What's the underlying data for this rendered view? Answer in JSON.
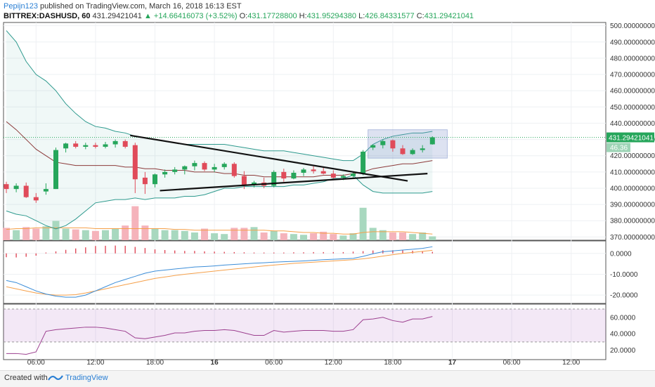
{
  "header": {
    "author": "Pepijn123",
    "published_text": "published on TradingView.com, March 16, 2018 16:13 EST",
    "symbol": "BITTREX:DASHUSD, 60",
    "last": "431.29421041",
    "change": "▲ +14.66416073 (+3.52%)",
    "open_label": "O:",
    "open": "431.17728800",
    "high_label": "H:",
    "high": "431.95294380",
    "low_label": "L:",
    "low": "426.84331577",
    "close_label": "C:",
    "close": "431.29421041"
  },
  "footer": {
    "created_with": "Created with",
    "brand": "TradingView"
  },
  "colors": {
    "up": "#26a65b",
    "down": "#e04b5a",
    "upVol": "#a8d8bf",
    "downVol": "#f5b3bb",
    "bb": "#2e9a8e",
    "ma": "#8c3a3a",
    "vma": "#f5a04a",
    "rsi": "#9c3f8f"
  },
  "chart_data": [
    {
      "type": "candlestick",
      "panel": "price",
      "y_ticks": [
        "500.00000000",
        "490.00000000",
        "480.00000000",
        "470.00000000",
        "460.00000000",
        "450.00000000",
        "440.00000000",
        "430.00000000",
        "420.00000000",
        "410.00000000",
        "400.00000000",
        "390.00000000",
        "380.00000000",
        "370.00000000"
      ],
      "ylim": [
        368,
        502
      ],
      "x_ticks": [
        "06:00",
        "12:00",
        "18:00",
        "16",
        "06:00",
        "12:00",
        "18:00",
        "17",
        "06:00",
        "12:00"
      ],
      "last_price_label": "431.29421041",
      "volume_label": "46.36",
      "candles": [
        {
          "o": 402.5,
          "h": 404,
          "l": 397,
          "c": 399.5,
          "v": 1.6
        },
        {
          "o": 399.5,
          "h": 403,
          "l": 397.5,
          "c": 401.5,
          "v": 1.3
        },
        {
          "o": 401.5,
          "h": 403.5,
          "l": 394,
          "c": 394.5,
          "v": 1.7
        },
        {
          "o": 394.5,
          "h": 397,
          "l": 391,
          "c": 392.5,
          "v": 1.5
        },
        {
          "o": 398,
          "h": 403,
          "l": 396,
          "c": 399.5,
          "v": 1.8
        },
        {
          "o": 399.5,
          "h": 425,
          "l": 399.5,
          "c": 423.5,
          "v": 2.5
        },
        {
          "o": 424.5,
          "h": 428,
          "l": 422,
          "c": 427.5,
          "v": 1.5
        },
        {
          "o": 427.5,
          "h": 429,
          "l": 424.5,
          "c": 425.5,
          "v": 1.4
        },
        {
          "o": 425.5,
          "h": 428,
          "l": 424,
          "c": 426.5,
          "v": 1.3
        },
        {
          "o": 426.5,
          "h": 428,
          "l": 424.5,
          "c": 425.5,
          "v": 1.2
        },
        {
          "o": 425.5,
          "h": 428.5,
          "l": 424.5,
          "c": 427.0,
          "v": 1.3
        },
        {
          "o": 427.0,
          "h": 430,
          "l": 425,
          "c": 429.0,
          "v": 1.5
        },
        {
          "o": 429.0,
          "h": 430,
          "l": 424.5,
          "c": 425.5,
          "v": 1.9
        },
        {
          "o": 426.5,
          "h": 428,
          "l": 397,
          "c": 405.5,
          "v": 4.4
        },
        {
          "o": 406.5,
          "h": 410,
          "l": 396.5,
          "c": 402.5,
          "v": 1.9
        },
        {
          "o": 402.5,
          "h": 409,
          "l": 400.5,
          "c": 408.5,
          "v": 1.5
        },
        {
          "o": 408.5,
          "h": 411.5,
          "l": 406.5,
          "c": 410.0,
          "v": 1.3
        },
        {
          "o": 410.0,
          "h": 413,
          "l": 408.5,
          "c": 411.5,
          "v": 1.3
        },
        {
          "o": 411.5,
          "h": 414,
          "l": 408.5,
          "c": 413.5,
          "v": 1.2
        },
        {
          "o": 413.5,
          "h": 417,
          "l": 411,
          "c": 415.5,
          "v": 1.0
        },
        {
          "o": 415.5,
          "h": 416.5,
          "l": 410.5,
          "c": 411.5,
          "v": 1.5
        },
        {
          "o": 411.5,
          "h": 415,
          "l": 410,
          "c": 413.0,
          "v": 0.9
        },
        {
          "o": 413.0,
          "h": 416,
          "l": 411.5,
          "c": 415.0,
          "v": 0.8
        },
        {
          "o": 415.0,
          "h": 416,
          "l": 406.5,
          "c": 407.5,
          "v": 1.6
        },
        {
          "o": 407.5,
          "h": 410.5,
          "l": 399.5,
          "c": 402.0,
          "v": 1.6
        },
        {
          "o": 402.0,
          "h": 404.5,
          "l": 400.5,
          "c": 403.5,
          "v": 1.7
        },
        {
          "o": 403.5,
          "h": 406.5,
          "l": 400,
          "c": 401.5,
          "v": 1.0
        },
        {
          "o": 401.5,
          "h": 411,
          "l": 400.5,
          "c": 410.0,
          "v": 1.2
        },
        {
          "o": 410.0,
          "h": 412,
          "l": 404,
          "c": 406.0,
          "v": 0.9
        },
        {
          "o": 406.0,
          "h": 411,
          "l": 405.5,
          "c": 409.5,
          "v": 0.8
        },
        {
          "o": 409.5,
          "h": 412.5,
          "l": 407.5,
          "c": 411.5,
          "v": 0.7
        },
        {
          "o": 411.5,
          "h": 413.5,
          "l": 409,
          "c": 410.5,
          "v": 0.9
        },
        {
          "o": 410.5,
          "h": 412.5,
          "l": 408.5,
          "c": 409.0,
          "v": 1.1
        },
        {
          "o": 409.0,
          "h": 411,
          "l": 405.5,
          "c": 406.5,
          "v": 0.8
        },
        {
          "o": 406.5,
          "h": 408.5,
          "l": 405,
          "c": 407.5,
          "v": 0.6
        },
        {
          "o": 407.5,
          "h": 410,
          "l": 406.5,
          "c": 409.0,
          "v": 0.9
        },
        {
          "o": 409.0,
          "h": 423.5,
          "l": 408,
          "c": 422.5,
          "v": 4.2
        },
        {
          "o": 425.0,
          "h": 427,
          "l": 423.5,
          "c": 426.5,
          "v": 1.6
        },
        {
          "o": 426.5,
          "h": 430,
          "l": 424.5,
          "c": 429.0,
          "v": 1.3
        },
        {
          "o": 429.5,
          "h": 430,
          "l": 422.5,
          "c": 424.5,
          "v": 1.0
        },
        {
          "o": 424.5,
          "h": 426.5,
          "l": 420.5,
          "c": 421.0,
          "v": 1.0
        },
        {
          "o": 421.0,
          "h": 424.5,
          "l": 420.5,
          "c": 423.5,
          "v": 0.8
        },
        {
          "o": 423.5,
          "h": 426.5,
          "l": 422,
          "c": 424.5,
          "v": 1.0
        },
        {
          "o": 427.0,
          "h": 431.95,
          "l": 426.84,
          "c": 431.29,
          "v": 0.5
        }
      ],
      "bb_upper": [
        497,
        490,
        478,
        470,
        466,
        460,
        452,
        446,
        441,
        438,
        437,
        435,
        434,
        432,
        431,
        430,
        429,
        428,
        427,
        427,
        427,
        427,
        427,
        426,
        425,
        424,
        423,
        423,
        423,
        422,
        421,
        420,
        419,
        418,
        417,
        417,
        421,
        427,
        430,
        432,
        433,
        434,
        434,
        435
      ],
      "bb_mid": [
        441,
        436,
        430,
        424,
        420,
        416,
        415,
        414,
        414,
        414,
        414,
        414,
        413,
        413,
        412,
        412,
        411,
        411,
        411,
        410,
        410,
        410,
        409,
        409,
        408,
        408,
        407,
        407,
        407,
        407,
        407,
        407,
        408,
        408,
        408,
        409,
        410,
        412,
        413,
        414,
        415,
        415,
        416,
        417
      ],
      "bb_lower": [
        386,
        384,
        383,
        380,
        377,
        375,
        377,
        381,
        386,
        391,
        392,
        393,
        393,
        394,
        393,
        394,
        394,
        394,
        395,
        395,
        396,
        398,
        400,
        400,
        401,
        401,
        401,
        401,
        401,
        402,
        402,
        403,
        404,
        406,
        406,
        408,
        402,
        398,
        397,
        397,
        397,
        397,
        397,
        398
      ],
      "volume_ma": [
        1.4,
        1.5,
        1.5,
        1.6,
        1.6,
        1.6,
        1.6,
        1.6,
        1.6,
        1.5,
        1.5,
        1.5,
        1.5,
        1.5,
        1.5,
        1.5,
        1.5,
        1.4,
        1.4,
        1.3,
        1.3,
        1.3,
        1.3,
        1.3,
        1.3,
        1.3,
        1.3,
        1.2,
        1.2,
        1.1,
        1.0,
        1.0,
        0.9,
        0.9,
        0.8,
        0.8,
        1.0,
        1.1,
        1.1,
        1.1,
        1.1,
        1.0,
        0.9,
        0.8
      ],
      "trendlines": [
        {
          "x1": 12.5,
          "y1": 432.5,
          "x2": 40.5,
          "y2": 404.5
        },
        {
          "x1": 15.5,
          "y1": 398.5,
          "x2": 42.5,
          "y2": 409.0
        }
      ],
      "box": {
        "x1": 36.5,
        "x2": 44.5,
        "y1": 418.5,
        "y2": 436.0
      }
    },
    {
      "type": "line",
      "panel": "macd",
      "y_ticks": [
        "0.0000",
        "-10.0000",
        "-20.0000"
      ],
      "ylim": [
        -24,
        6
      ],
      "macd": [
        -13,
        -14,
        -16,
        -18,
        -19.5,
        -20.5,
        -21,
        -21,
        -20,
        -18,
        -16,
        -14,
        -12.5,
        -11,
        -9.5,
        -8.5,
        -8,
        -7.5,
        -7,
        -6.5,
        -6.3,
        -6,
        -5.6,
        -5.3,
        -5,
        -4.7,
        -4.5,
        -4.2,
        -4,
        -3.8,
        -3.6,
        -3.3,
        -3,
        -2.8,
        -2.6,
        -2.4,
        -1.4,
        -0.2,
        0.8,
        1.2,
        1.6,
        2.0,
        2.4,
        3.2
      ],
      "signal": [
        -16,
        -17,
        -18,
        -19,
        -19.6,
        -20,
        -20,
        -19.8,
        -19,
        -18,
        -17,
        -16,
        -15,
        -14,
        -13,
        -12,
        -11.3,
        -10.6,
        -10,
        -9.5,
        -9,
        -8.5,
        -8,
        -7.5,
        -7,
        -6.5,
        -6,
        -5.6,
        -5.2,
        -4.8,
        -4.5,
        -4.2,
        -3.9,
        -3.6,
        -3.3,
        -3.0,
        -2.6,
        -2.0,
        -1.3,
        -0.6,
        0.0,
        0.5,
        1.0,
        1.5
      ],
      "hist": [
        -1.7,
        -1.8,
        -1.5,
        -1.0,
        0.4,
        0.9,
        1.6,
        2.2,
        2.7,
        3.3,
        3.4,
        3.5,
        3.4,
        2.9,
        2.4,
        1.8,
        1.5,
        1.3,
        1.1,
        1.1,
        0.9,
        0.8,
        0.7,
        0.6,
        0.5,
        0.4,
        0.4,
        0.4,
        0.4,
        0.5,
        0.5,
        0.6,
        0.6,
        0.6,
        0.6,
        0.8,
        1.0,
        1.3,
        1.4,
        1.4,
        1.4,
        1.2,
        0.9,
        0.7
      ]
    },
    {
      "type": "line",
      "panel": "rsi",
      "y_ticks": [
        "60.0000",
        "40.0000",
        "20.0000"
      ],
      "ylim": [
        12,
        76
      ],
      "band": [
        30,
        70
      ],
      "rsi": [
        16,
        16,
        15,
        18,
        43,
        45,
        46,
        47,
        48,
        48,
        47,
        45,
        43,
        35,
        34,
        36,
        38,
        41,
        41,
        43,
        44,
        44,
        45,
        44,
        41,
        38,
        38,
        44,
        42,
        43,
        44,
        44,
        44,
        43,
        43,
        45,
        57,
        58,
        60,
        56,
        54,
        58,
        58,
        61
      ]
    }
  ]
}
